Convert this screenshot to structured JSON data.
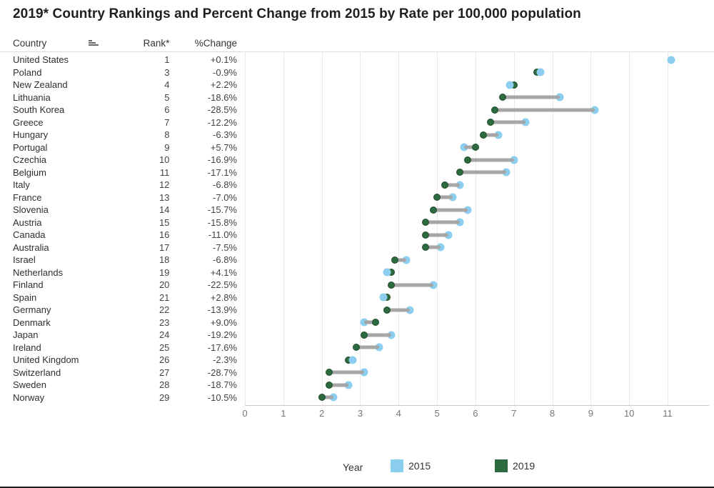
{
  "title": "2019* Country Rankings and Percent Change from 2015 by Rate per 100,000 population",
  "table": {
    "columns": {
      "country": "Country",
      "rank": "Rank*",
      "change": "%Change"
    },
    "sort_icon": "sort-ascending-bars-icon"
  },
  "legend": {
    "label": "Year",
    "items": [
      {
        "label": "2015",
        "color": "#8cceef"
      },
      {
        "label": "2019",
        "color": "#2d6a3f"
      }
    ],
    "position": "bottom"
  },
  "colors": {
    "dot_2015": "#8cceef",
    "dot_2019": "#2d6a3f",
    "connector": "#a6a6a6",
    "gridline": "#e9e9e9",
    "axis_text": "#767676",
    "table_text": "#2f2f2f",
    "title_text": "#1f1f1f"
  },
  "chart_data": {
    "type": "scatter",
    "subtype": "dumbbell",
    "title": "2019* Country Rankings and Percent Change from 2015 by Rate per 100,000 population",
    "xlabel": "Rate per 100,000 population",
    "ylabel": "Country",
    "xlim": [
      0,
      11.5
    ],
    "xticks": [
      0,
      1,
      2,
      3,
      4,
      5,
      6,
      7,
      8,
      9,
      10,
      11
    ],
    "grid": true,
    "legend_title": "Year",
    "series_names": [
      "2015",
      "2019"
    ],
    "rows": [
      {
        "country": "United States",
        "rank": 1,
        "change": "+0.1%",
        "v2015": 11.1,
        "v2019": 11.1
      },
      {
        "country": "Poland",
        "rank": 3,
        "change": "-0.9%",
        "v2015": 7.7,
        "v2019": 7.6
      },
      {
        "country": "New Zealand",
        "rank": 4,
        "change": "+2.2%",
        "v2015": 6.9,
        "v2019": 7.0
      },
      {
        "country": "Lithuania",
        "rank": 5,
        "change": "-18.6%",
        "v2015": 8.2,
        "v2019": 6.7
      },
      {
        "country": "South Korea",
        "rank": 6,
        "change": "-28.5%",
        "v2015": 9.1,
        "v2019": 6.5
      },
      {
        "country": "Greece",
        "rank": 7,
        "change": "-12.2%",
        "v2015": 7.3,
        "v2019": 6.4
      },
      {
        "country": "Hungary",
        "rank": 8,
        "change": "-6.3%",
        "v2015": 6.6,
        "v2019": 6.2
      },
      {
        "country": "Portugal",
        "rank": 9,
        "change": "+5.7%",
        "v2015": 5.7,
        "v2019": 6.0
      },
      {
        "country": "Czechia",
        "rank": 10,
        "change": "-16.9%",
        "v2015": 7.0,
        "v2019": 5.8
      },
      {
        "country": "Belgium",
        "rank": 11,
        "change": "-17.1%",
        "v2015": 6.8,
        "v2019": 5.6
      },
      {
        "country": "Italy",
        "rank": 12,
        "change": "-6.8%",
        "v2015": 5.6,
        "v2019": 5.2
      },
      {
        "country": "France",
        "rank": 13,
        "change": "-7.0%",
        "v2015": 5.4,
        "v2019": 5.0
      },
      {
        "country": "Slovenia",
        "rank": 14,
        "change": "-15.7%",
        "v2015": 5.8,
        "v2019": 4.9
      },
      {
        "country": "Austria",
        "rank": 15,
        "change": "-15.8%",
        "v2015": 5.6,
        "v2019": 4.7
      },
      {
        "country": "Canada",
        "rank": 16,
        "change": "-11.0%",
        "v2015": 5.3,
        "v2019": 4.7
      },
      {
        "country": "Australia",
        "rank": 17,
        "change": "-7.5%",
        "v2015": 5.1,
        "v2019": 4.7
      },
      {
        "country": "Israel",
        "rank": 18,
        "change": "-6.8%",
        "v2015": 4.2,
        "v2019": 3.9
      },
      {
        "country": "Netherlands",
        "rank": 19,
        "change": "+4.1%",
        "v2015": 3.7,
        "v2019": 3.8
      },
      {
        "country": "Finland",
        "rank": 20,
        "change": "-22.5%",
        "v2015": 4.9,
        "v2019": 3.8
      },
      {
        "country": "Spain",
        "rank": 21,
        "change": "+2.8%",
        "v2015": 3.6,
        "v2019": 3.7
      },
      {
        "country": "Germany",
        "rank": 22,
        "change": "-13.9%",
        "v2015": 4.3,
        "v2019": 3.7
      },
      {
        "country": "Denmark",
        "rank": 23,
        "change": "+9.0%",
        "v2015": 3.1,
        "v2019": 3.4
      },
      {
        "country": "Japan",
        "rank": 24,
        "change": "-19.2%",
        "v2015": 3.8,
        "v2019": 3.1
      },
      {
        "country": "Ireland",
        "rank": 25,
        "change": "-17.6%",
        "v2015": 3.5,
        "v2019": 2.9
      },
      {
        "country": "United Kingdom",
        "rank": 26,
        "change": "-2.3%",
        "v2015": 2.8,
        "v2019": 2.7
      },
      {
        "country": "Switzerland",
        "rank": 27,
        "change": "-28.7%",
        "v2015": 3.1,
        "v2019": 2.2
      },
      {
        "country": "Sweden",
        "rank": 28,
        "change": "-18.7%",
        "v2015": 2.7,
        "v2019": 2.2
      },
      {
        "country": "Norway",
        "rank": 29,
        "change": "-10.5%",
        "v2015": 2.3,
        "v2019": 2.0
      }
    ]
  }
}
